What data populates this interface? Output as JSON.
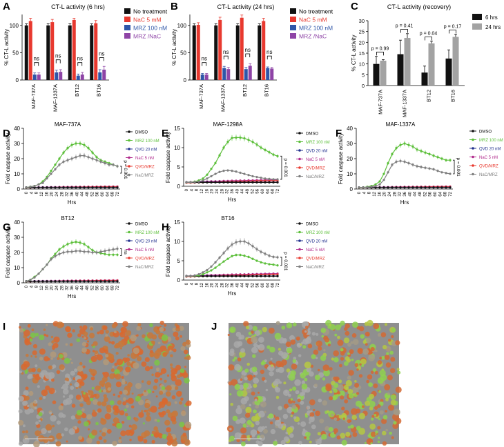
{
  "figure": {
    "colors": {
      "black": "#111111",
      "red": "#e8392f",
      "blue": "#2f56a8",
      "purple": "#8e44a6",
      "green": "#5cbf3a",
      "gray": "#7f7f7f",
      "orange": "#e35a36",
      "navy": "#23328f",
      "magenta": "#b02a8c",
      "lightgray": "#a3a3a3"
    },
    "ctl_panels": [
      {
        "letter": "A",
        "title": "CT-L activity (6 hrs)",
        "ylabel": "% CT-L activity",
        "yticks": [
          "0",
          "50",
          "100"
        ],
        "ylim": [
          0,
          120
        ],
        "categories": [
          "MAF-737A",
          "MAF-1337A",
          "BT12",
          "BT16"
        ],
        "series": [
          {
            "name": "No treatment",
            "color": "#111111",
            "values": [
              100,
              100,
              100,
              100
            ],
            "errors": [
              3,
              3,
              3,
              3
            ]
          },
          {
            "name": "NaC 5 mM",
            "color": "#e8392f",
            "values": [
              108,
              106,
              110,
              104
            ],
            "errors": [
              5,
              5,
              3,
              5
            ]
          },
          {
            "name": "MRZ 100 nM",
            "color": "#2f56a8",
            "values": [
              10,
              14,
              8,
              14
            ],
            "errors": [
              3,
              4,
              3,
              5
            ]
          },
          {
            "name": "MRZ /NaC",
            "color": "#8e44a6",
            "values": [
              10,
              15,
              10,
              19
            ],
            "errors": [
              3,
              4,
              4,
              6
            ]
          }
        ],
        "annotations": [
          "ns",
          "ns",
          "ns",
          "ns"
        ]
      },
      {
        "letter": "B",
        "title": "CT-L activity (24 hrs)",
        "ylabel": "% CT-L activity",
        "yticks": [
          "0",
          "50",
          "100"
        ],
        "ylim": [
          0,
          120
        ],
        "categories": [
          "MAF-737A",
          "MAF-1337A",
          "BT12",
          "BT16"
        ],
        "series": [
          {
            "name": "No treatment",
            "color": "#111111",
            "values": [
              100,
              100,
              100,
              100
            ],
            "errors": [
              3,
              3,
              3,
              3
            ]
          },
          {
            "name": "NaC 5 mM",
            "color": "#e8392f",
            "values": [
              101,
              110,
              114,
              108
            ],
            "errors": [
              4,
              5,
              5,
              5
            ]
          },
          {
            "name": "MRZ 100 nM",
            "color": "#2f56a8",
            "values": [
              10,
              22,
              20,
              22
            ],
            "errors": [
              2,
              3,
              3,
              2
            ]
          },
          {
            "name": "MRZ /NaC",
            "color": "#8e44a6",
            "values": [
              10,
              20,
              26,
              21
            ],
            "errors": [
              2,
              3,
              4,
              2
            ]
          }
        ],
        "annotations": [
          "ns",
          "ns",
          "ns",
          "ns"
        ]
      }
    ],
    "recovery_panel": {
      "letter": "C",
      "title": "CT-L activity (recovery)",
      "ylabel": "% CT-L activity",
      "yticks": [
        "0",
        "5",
        "10",
        "15",
        "20",
        "25",
        "30"
      ],
      "ylim": [
        0,
        30
      ],
      "categories": [
        "MAF-737A",
        "MAF-1337A",
        "BT12",
        "BT16"
      ],
      "series": [
        {
          "name": "6 hrs",
          "color": "#111111",
          "values": [
            10,
            14.5,
            6,
            12.5
          ],
          "errors": [
            3.5,
            6.5,
            3,
            4
          ]
        },
        {
          "name": "24 hrs",
          "color": "#a3a3a3",
          "values": [
            11.5,
            22,
            19.5,
            22.5
          ],
          "errors": [
            0.5,
            2,
            1,
            1.2
          ]
        }
      ],
      "pvalues": [
        "p = 0.99",
        "p = 0.41",
        "p = 0.04",
        "p = 0.17"
      ]
    },
    "caspase_panels": [
      {
        "letter": "D",
        "title": "MAF-737A",
        "ymax": 40,
        "yticks": [
          "0",
          "10",
          "20",
          "30",
          "40"
        ],
        "pvalue": "p = 0.001",
        "mrz": [
          1,
          1.5,
          2,
          3,
          5,
          8,
          12,
          16,
          20,
          24,
          27,
          29,
          30,
          30,
          29,
          27,
          24,
          21,
          19,
          18,
          17,
          16,
          15
        ],
        "nac_mrz": [
          1,
          1.5,
          2,
          3,
          4,
          7,
          10,
          13,
          16,
          18,
          19,
          20,
          21,
          22,
          22,
          21,
          20,
          19,
          18,
          17,
          16,
          16,
          15
        ]
      },
      {
        "letter": "E",
        "title": "MAF-1298A",
        "ymax": 15,
        "yticks": [
          "0",
          "5",
          "10",
          "15"
        ],
        "pvalue": "p = 0.001",
        "mrz": [
          1,
          1,
          1.2,
          1.5,
          2,
          3,
          4.5,
          6,
          8,
          10,
          11.5,
          12.5,
          12.6,
          12.6,
          12.4,
          12,
          11.5,
          10.8,
          10,
          9.4,
          8.8,
          8.2,
          7.8
        ],
        "nac_mrz": [
          1,
          1,
          1.1,
          1.2,
          1.5,
          2,
          2.6,
          3.2,
          3.7,
          4,
          4.1,
          4,
          3.8,
          3.5,
          3.2,
          2.9,
          2.6,
          2.4,
          2.2,
          2,
          1.9,
          1.8,
          1.8
        ]
      },
      {
        "letter": "F",
        "title": "MAF-1337A",
        "ymax": 40,
        "yticks": [
          "0",
          "10",
          "20",
          "30",
          "40"
        ],
        "pvalue": "p = 0.001",
        "mrz": [
          1,
          1,
          1.5,
          2,
          3,
          5,
          10,
          17,
          23,
          27,
          29,
          30,
          29,
          28,
          26,
          25,
          24,
          23,
          22,
          21,
          20,
          19,
          19
        ],
        "nac_mrz": [
          1,
          1,
          1.2,
          1.5,
          2,
          3,
          6,
          11,
          16,
          18,
          18.5,
          18,
          17,
          16,
          15,
          14.5,
          14,
          13.5,
          13,
          12,
          11,
          10.5,
          10
        ]
      },
      {
        "letter": "G",
        "title": "BT12",
        "ymax": 40,
        "yticks": [
          "0",
          "10",
          "20",
          "30",
          "40"
        ],
        "pvalue": "ns",
        "mrz": [
          1,
          2,
          4,
          6,
          9,
          12,
          16,
          19,
          22,
          24,
          25.5,
          26.5,
          27,
          26.5,
          25.5,
          23.5,
          21.5,
          20,
          19.5,
          19,
          18.5,
          18.5,
          18.5
        ],
        "nac_mrz": [
          1,
          2,
          3.5,
          6,
          9,
          12,
          15.5,
          17.5,
          19,
          20,
          20.5,
          20.5,
          21,
          21,
          20.5,
          20.5,
          20,
          20,
          20.5,
          21,
          21.5,
          22,
          22.5
        ]
      },
      {
        "letter": "H",
        "title": "BT16",
        "ymax": 15,
        "yticks": [
          "0",
          "5",
          "10",
          "15"
        ],
        "pvalue": "p = 0.001",
        "mrz": [
          1,
          1,
          1.1,
          1.2,
          1.5,
          2,
          2.5,
          3.2,
          4,
          4.8,
          5.5,
          6.2,
          6.5,
          6.5,
          6.3,
          6,
          5.5,
          5,
          4.6,
          4.3,
          4.1,
          4,
          3.8
        ],
        "nac_mrz": [
          1,
          1,
          1.2,
          1.5,
          2,
          2.6,
          3.5,
          4.6,
          5.8,
          7,
          8.2,
          9.2,
          9.8,
          10,
          10,
          9.5,
          8.8,
          8,
          7.3,
          6.8,
          6.3,
          6,
          5.9
        ]
      }
    ],
    "caspase_common": {
      "ylabel": "Fold caspase activity",
      "xlabel": "Hrs",
      "xticks": [
        "0",
        "4",
        "8",
        "12",
        "16",
        "20",
        "24",
        "28",
        "32",
        "36",
        "40",
        "44",
        "48",
        "52",
        "56",
        "60",
        "64",
        "68",
        "72"
      ],
      "legend": [
        {
          "name": "DMSO",
          "color": "#111111"
        },
        {
          "name": "MRZ 100 nM",
          "color": "#5cbf3a"
        },
        {
          "name": "QVD 20 nM",
          "color": "#23328f"
        },
        {
          "name": "NaC 5 nM",
          "color": "#b02a8c"
        },
        {
          "name": "QVD/MRZ",
          "color": "#e8392f"
        },
        {
          "name": "NaC/MRZ",
          "color": "#7f7f7f"
        }
      ],
      "baseline_values": [
        1,
        1,
        1,
        1,
        1,
        1,
        1,
        1,
        1,
        1,
        1,
        1,
        1,
        1,
        1,
        1,
        1,
        1,
        1,
        1,
        1,
        1,
        1
      ],
      "low_values": [
        1,
        1,
        1.05,
        1.1,
        1.1,
        1.15,
        1.2,
        1.2,
        1.25,
        1.3,
        1.3,
        1.35,
        1.35,
        1.4,
        1.4,
        1.45,
        1.45,
        1.5,
        1.5,
        1.55,
        1.55,
        1.6,
        1.6
      ]
    },
    "image_panels": [
      {
        "letter": "I",
        "name": "micrograph-orange"
      },
      {
        "letter": "J",
        "name": "micrograph-green"
      }
    ]
  }
}
